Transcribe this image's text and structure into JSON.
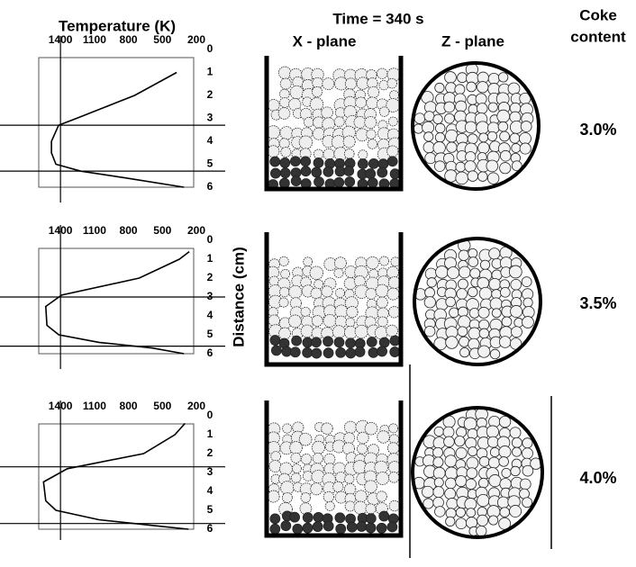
{
  "figure": {
    "time_label": "Time = 340 s",
    "x_plane": "X - plane",
    "z_plane": "Z - plane",
    "coke_title": [
      "Coke",
      "content"
    ],
    "x_title": "Temperature (K)",
    "y_title": "Distance (cm)",
    "coke_content": [
      "3.0%",
      "3.5%",
      "4.0%"
    ]
  },
  "chart_data": [
    {
      "type": "line",
      "color": "#000000",
      "xlim": [
        1600,
        200
      ],
      "ylim": [
        6,
        0
      ],
      "xticks": [
        1400,
        1100,
        800,
        500,
        200
      ],
      "yticks": [
        0,
        1,
        2,
        3,
        4,
        5,
        6
      ],
      "x": [
        374,
        745,
        1258,
        1416,
        1480,
        1480,
        1440,
        1220,
        820,
        310
      ],
      "values": [
        1,
        2,
        3,
        3.3,
        4,
        4.5,
        5,
        5.3,
        5.6,
        6
      ],
      "hlines": [
        3.3,
        5.3
      ],
      "vline": 1400
    },
    {
      "type": "line",
      "color": "#000000",
      "xlim": [
        1600,
        200
      ],
      "ylim": [
        6,
        0
      ],
      "xticks": [
        1400,
        1100,
        800,
        500,
        200
      ],
      "yticks": [
        0,
        1,
        2,
        3,
        4,
        5,
        6
      ],
      "x": [
        263,
        350,
        705,
        1390,
        1530,
        1520,
        1415,
        1060,
        590,
        310
      ],
      "values": [
        0.6,
        1,
        2,
        2.9,
        3.5,
        4.5,
        5,
        5.4,
        5.7,
        6
      ],
      "hlines": [
        3,
        5.6
      ],
      "vline": 1400
    },
    {
      "type": "line",
      "color": "#000000",
      "xlim": [
        1600,
        200
      ],
      "ylim": [
        6,
        0
      ],
      "xticks": [
        1400,
        1100,
        800,
        500,
        200
      ],
      "yticks": [
        0,
        1,
        2,
        3,
        4,
        5,
        6
      ],
      "x": [
        300,
        390,
        665,
        1340,
        1550,
        1530,
        1440,
        1060,
        590,
        270
      ],
      "values": [
        0.4,
        1,
        2,
        2.8,
        3.5,
        4.5,
        5,
        5.5,
        5.8,
        6
      ],
      "hlines": [
        2.7,
        5.7
      ],
      "vline": 1400
    }
  ]
}
